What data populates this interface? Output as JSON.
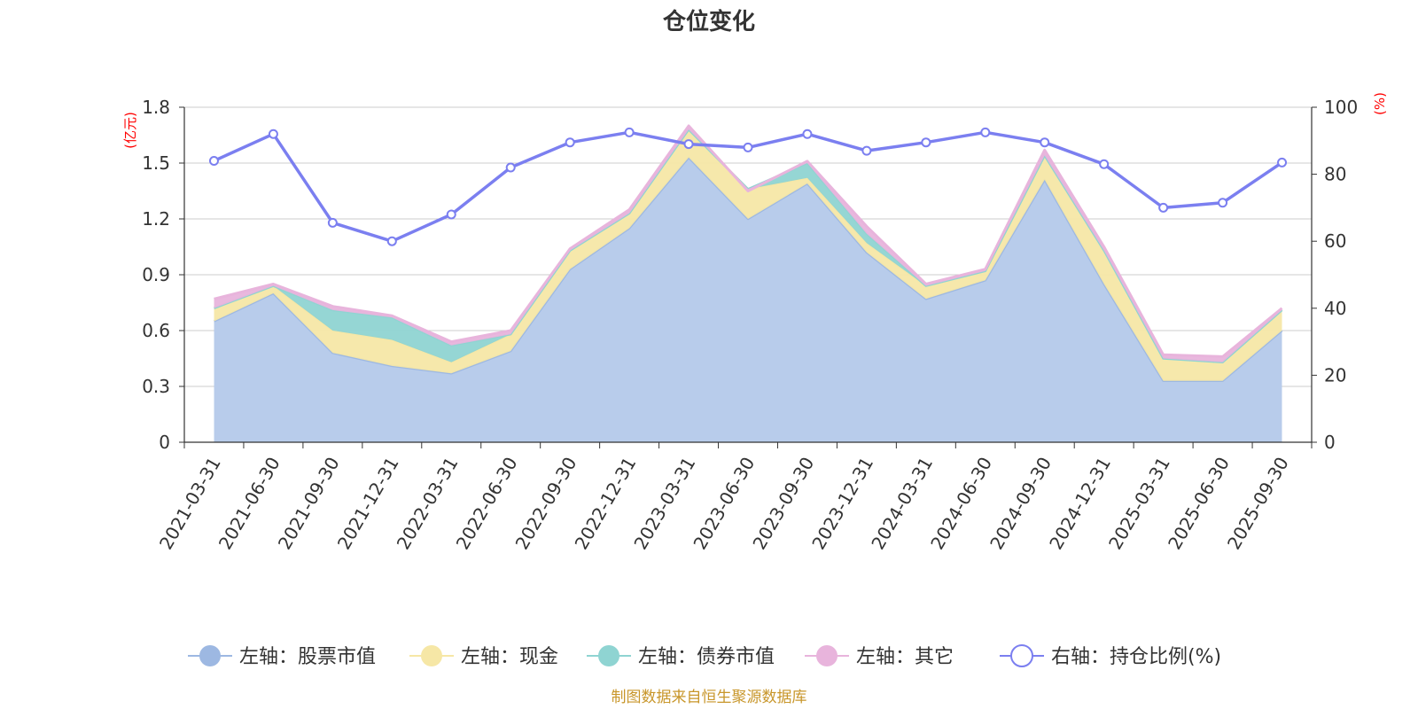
{
  "title": "仓位变化",
  "source": "制图数据来自恒生聚源数据库",
  "colors": {
    "stock": "#9db8e2",
    "stock_fill": "#b8cceb",
    "cash": "#f6e7a6",
    "bond": "#8fd4d2",
    "other": "#e8b4dc",
    "ratio": "#7b7ff0"
  },
  "chart_data": {
    "type": "area",
    "title": "仓位变化",
    "x": [
      "2021-03-31",
      "2021-06-30",
      "2021-09-30",
      "2021-12-31",
      "2022-03-31",
      "2022-06-30",
      "2022-09-30",
      "2022-12-31",
      "2023-03-31",
      "2023-06-30",
      "2023-09-30",
      "2023-12-31",
      "2024-03-31",
      "2024-06-30",
      "2024-09-30",
      "2024-12-31",
      "2025-03-31",
      "2025-06-30",
      "2025-09-30"
    ],
    "left_axis": {
      "unit": "(亿元)",
      "ylim": [
        0,
        1.8
      ],
      "ticks": [
        "0",
        "0.3",
        "0.6",
        "0.9",
        "1.2",
        "1.5",
        "1.8"
      ]
    },
    "right_axis": {
      "unit": "(%)",
      "ylim": [
        0,
        100
      ],
      "ticks": [
        "0",
        "20",
        "40",
        "60",
        "80",
        "100"
      ]
    },
    "grid": true,
    "legend_position": "bottom",
    "series": [
      {
        "name": "左轴：股票市值",
        "axis": "left",
        "type": "area",
        "values": [
          0.65,
          0.8,
          0.48,
          0.41,
          0.37,
          0.49,
          0.93,
          1.15,
          1.53,
          1.2,
          1.39,
          1.02,
          0.77,
          0.87,
          1.41,
          0.85,
          0.33,
          0.33,
          0.6
        ]
      },
      {
        "name": "左轴：现金",
        "axis": "left",
        "type": "area",
        "values": [
          0.07,
          0.04,
          0.12,
          0.14,
          0.06,
          0.09,
          0.1,
          0.08,
          0.15,
          0.16,
          0.03,
          0.05,
          0.07,
          0.05,
          0.13,
          0.18,
          0.12,
          0.1,
          0.11
        ]
      },
      {
        "name": "左轴：债券市值",
        "axis": "left",
        "type": "area",
        "values": [
          0,
          0,
          0.11,
          0.12,
          0.09,
          0,
          0,
          0,
          0,
          0,
          0.08,
          0.05,
          0,
          0,
          0,
          0,
          0,
          0,
          0
        ]
      },
      {
        "name": "左轴：其它",
        "axis": "left",
        "type": "area",
        "values": [
          0.05,
          0.01,
          0.02,
          0.01,
          0.02,
          0.02,
          0.01,
          0.02,
          0.02,
          -0.01,
          0.01,
          0.04,
          0.01,
          0.01,
          0.03,
          0.02,
          0.02,
          0.03,
          0.01
        ]
      },
      {
        "name": "右轴：持仓比例(%)",
        "axis": "right",
        "type": "line",
        "values": [
          84,
          92,
          65.5,
          60,
          68,
          82,
          89.5,
          92.5,
          89,
          88,
          92,
          87,
          89.5,
          92.5,
          89.5,
          83,
          70,
          71.5,
          83.5
        ]
      }
    ]
  }
}
